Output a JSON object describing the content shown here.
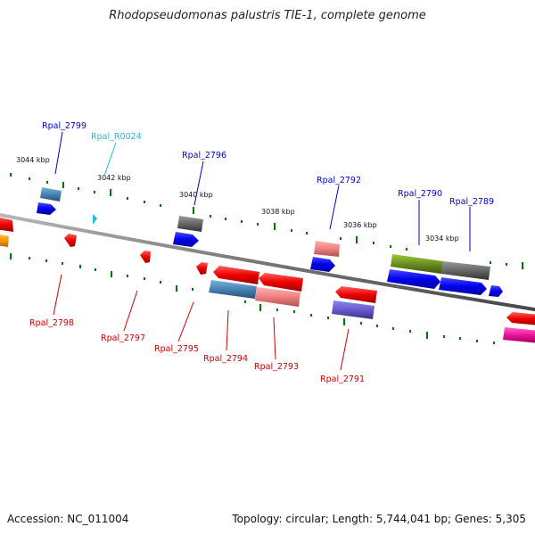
{
  "title": "Rhodopseudomonas palustris TIE-1, complete genome",
  "footer": {
    "accession": "Accession: NC_011004",
    "topology": "Topology: circular; Length: 5,744,041 bp; Genes: 5,305"
  },
  "colors": {
    "forward_label": "#0000cc",
    "reverse_label": "#cc0000",
    "rna_label": "#22bbdd",
    "backbone": "#777777",
    "tick": "#007700"
  },
  "kbp_labels": [
    "3044 kbp",
    "3042 kbp",
    "3040 kbp",
    "3038 kbp",
    "3036 kbp",
    "3034 kbp"
  ],
  "gene_labels_top": [
    "Rpal_2799",
    "Rpal_R0024",
    "Rpal_2796",
    "Rpal_2792",
    "Rpal_2790",
    "Rpal_2789"
  ],
  "gene_labels_bottom": [
    "Rpal_2798",
    "Rpal_2797",
    "Rpal_2795",
    "Rpal_2794",
    "Rpal_2793",
    "Rpal_2791"
  ]
}
